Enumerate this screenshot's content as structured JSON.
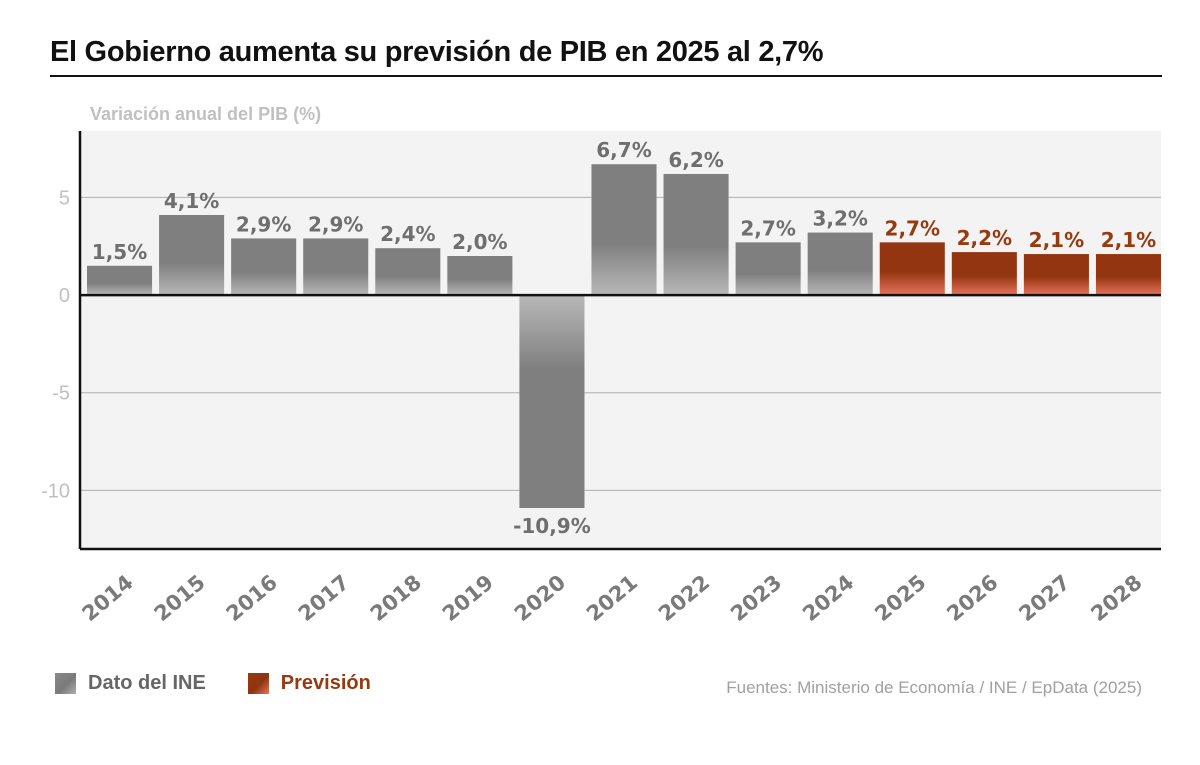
{
  "title": "El Gobierno aumenta su previsión de PIB en 2025 al 2,7%",
  "colors": {
    "ine_bar": "#7f7f7f",
    "ine_bar_light": "#b5b5b5",
    "forecast_bar": "#923510",
    "forecast_bar_light": "#e8735c",
    "ine_label": "#6f6f6f",
    "forecast_label": "#983a0f",
    "plot_background": "#f3f3f3",
    "gridline": "#b0b0b0",
    "axis_text": "#c0c0c0",
    "xtick_text": "#7a7a7a"
  },
  "legend": {
    "items": [
      {
        "label": "Dato del INE",
        "key": "ine"
      },
      {
        "label": "Previsión",
        "key": "forecast"
      }
    ]
  },
  "source": "Fuentes: Ministerio de Economía / INE / EpData (2025)",
  "chart_data": {
    "type": "bar",
    "title": "El Gobierno aumenta su previsión de PIB en 2025 al 2,7%",
    "ylabel": "Variación anual del PIB (%)",
    "xlabel": "",
    "categories": [
      "2014",
      "2015",
      "2016",
      "2017",
      "2018",
      "2019",
      "2020",
      "2021",
      "2022",
      "2023",
      "2024",
      "2025",
      "2026",
      "2027",
      "2028"
    ],
    "series": [
      {
        "name": "Dato del INE",
        "values": [
          1.5,
          4.1,
          2.9,
          2.9,
          2.4,
          2.0,
          -10.9,
          6.7,
          6.2,
          2.7,
          3.2,
          null,
          null,
          null,
          null
        ]
      },
      {
        "name": "Previsión",
        "values": [
          null,
          null,
          null,
          null,
          null,
          null,
          null,
          null,
          null,
          null,
          null,
          2.7,
          2.2,
          2.1,
          2.1
        ]
      }
    ],
    "data_labels": [
      "1,5%",
      "4,1%",
      "2,9%",
      "2,9%",
      "2,4%",
      "2,0%",
      "-10,9%",
      "6,7%",
      "6,2%",
      "2,7%",
      "3,2%",
      "2,7%",
      "2,2%",
      "2,1%",
      "2,1%"
    ],
    "yticks": [
      5,
      0,
      -5,
      -10
    ],
    "ytick_labels": [
      "5",
      "0",
      "-5",
      "-10"
    ],
    "ylim": [
      -13,
      8.4
    ],
    "grid": true,
    "legend_position": "bottom-left"
  }
}
